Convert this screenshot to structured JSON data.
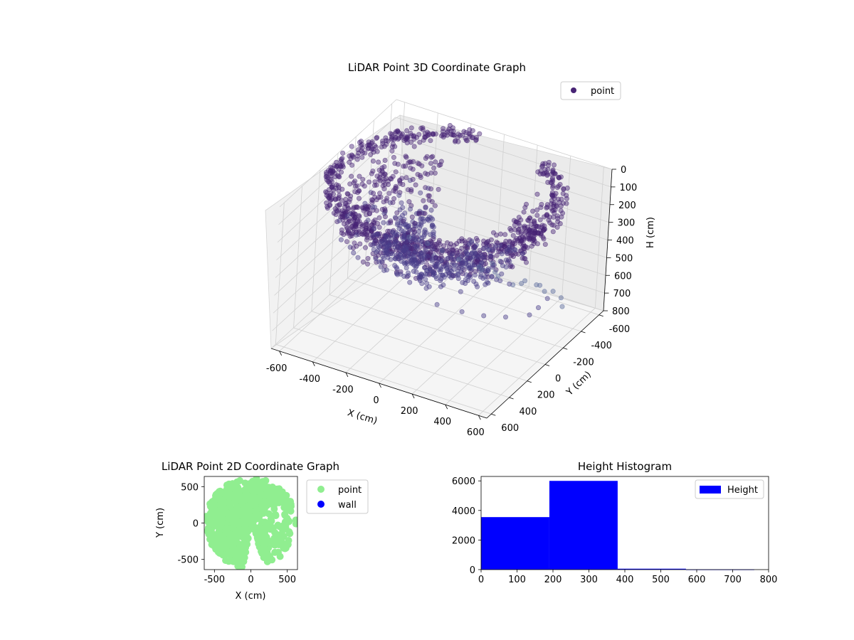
{
  "chart_data": [
    {
      "type": "scatter",
      "projection": "3d",
      "title": "LiDAR Point 3D Coordinate Graph",
      "xlabel": "X (cm)",
      "ylabel": "Y (cm)",
      "zlabel": "H (cm)",
      "xlim": [
        -650,
        650
      ],
      "ylim": [
        -650,
        650
      ],
      "zlim": [
        0,
        800
      ],
      "z_inverted": true,
      "xticks": [
        -600,
        -400,
        -200,
        0,
        200,
        400,
        600
      ],
      "yticks": [
        -600,
        -400,
        -200,
        0,
        200,
        400,
        600
      ],
      "zticks": [
        0,
        100,
        200,
        300,
        400,
        500,
        600,
        700,
        800
      ],
      "grid": true,
      "legend": {
        "position": "upper-right",
        "entries": [
          "point"
        ]
      },
      "series": [
        {
          "name": "point",
          "color": "#482475",
          "description_rings": [
            {
              "radius_min": 560,
              "radius_max": 650,
              "h_min": 0,
              "h_max": 60,
              "theta_from_deg": -60,
              "theta_to_deg": 260
            },
            {
              "radius_min": 380,
              "radius_max": 560,
              "h_min": 60,
              "h_max": 260,
              "theta_from_deg": -40,
              "theta_to_deg": 240
            },
            {
              "radius_min": 150,
              "radius_max": 380,
              "h_min": 200,
              "h_max": 400,
              "theta_from_deg": -20,
              "theta_to_deg": 230
            }
          ],
          "scattered_points": [
            [
              -100,
              -650,
              780
            ],
            [
              -60,
              -600,
              760
            ],
            [
              20,
              -640,
              790
            ],
            [
              -180,
              -560,
              720
            ],
            [
              120,
              -620,
              800
            ],
            [
              60,
              -520,
              700
            ],
            [
              -240,
              -480,
              650
            ],
            [
              200,
              -560,
              740
            ],
            [
              300,
              -400,
              620
            ],
            [
              420,
              -300,
              560
            ],
            [
              520,
              -200,
              520
            ],
            [
              600,
              -80,
              480
            ],
            [
              620,
              60,
              460
            ],
            [
              640,
              200,
              430
            ],
            [
              560,
              320,
              410
            ],
            [
              480,
              420,
              380
            ],
            [
              380,
              480,
              360
            ],
            [
              250,
              520,
              340
            ],
            [
              -300,
              -420,
              600
            ],
            [
              -380,
              -360,
              560
            ],
            [
              340,
              -500,
              680
            ],
            [
              460,
              -420,
              640
            ],
            [
              560,
              -320,
              600
            ],
            [
              640,
              -180,
              560
            ],
            [
              150,
              -300,
              520
            ],
            [
              260,
              -200,
              500
            ],
            [
              360,
              -100,
              480
            ]
          ]
        }
      ]
    },
    {
      "type": "scatter",
      "title": "LiDAR Point 2D Coordinate Graph",
      "xlabel": "X (cm)",
      "ylabel": "Y (cm)",
      "xlim": [
        -640,
        640
      ],
      "ylim": [
        -640,
        640
      ],
      "xticks": [
        -500,
        0,
        500
      ],
      "yticks": [
        -500,
        0,
        500
      ],
      "grid": false,
      "legend": {
        "position": "outside-right",
        "entries": [
          "point",
          "wall"
        ]
      },
      "series": [
        {
          "name": "point",
          "color": "#90ee90",
          "marker": "circle"
        },
        {
          "name": "wall",
          "color": "#0000ff",
          "marker": "circle"
        }
      ]
    },
    {
      "type": "bar",
      "histogram": true,
      "title": "Height Histogram",
      "xlabel": "",
      "ylabel": "",
      "xlim": [
        0,
        800
      ],
      "ylim": [
        0,
        6300
      ],
      "xticks": [
        0,
        100,
        200,
        300,
        400,
        500,
        600,
        700,
        800
      ],
      "yticks": [
        0,
        2000,
        4000,
        6000
      ],
      "bins": [
        {
          "from": 0,
          "to": 190,
          "count": 3550
        },
        {
          "from": 190,
          "to": 380,
          "count": 6000
        },
        {
          "from": 380,
          "to": 570,
          "count": 60
        },
        {
          "from": 570,
          "to": 760,
          "count": 10
        }
      ],
      "legend": {
        "position": "upper-right",
        "entries": [
          "Height"
        ]
      },
      "series": [
        {
          "name": "Height",
          "color": "#0000ff"
        }
      ]
    }
  ]
}
